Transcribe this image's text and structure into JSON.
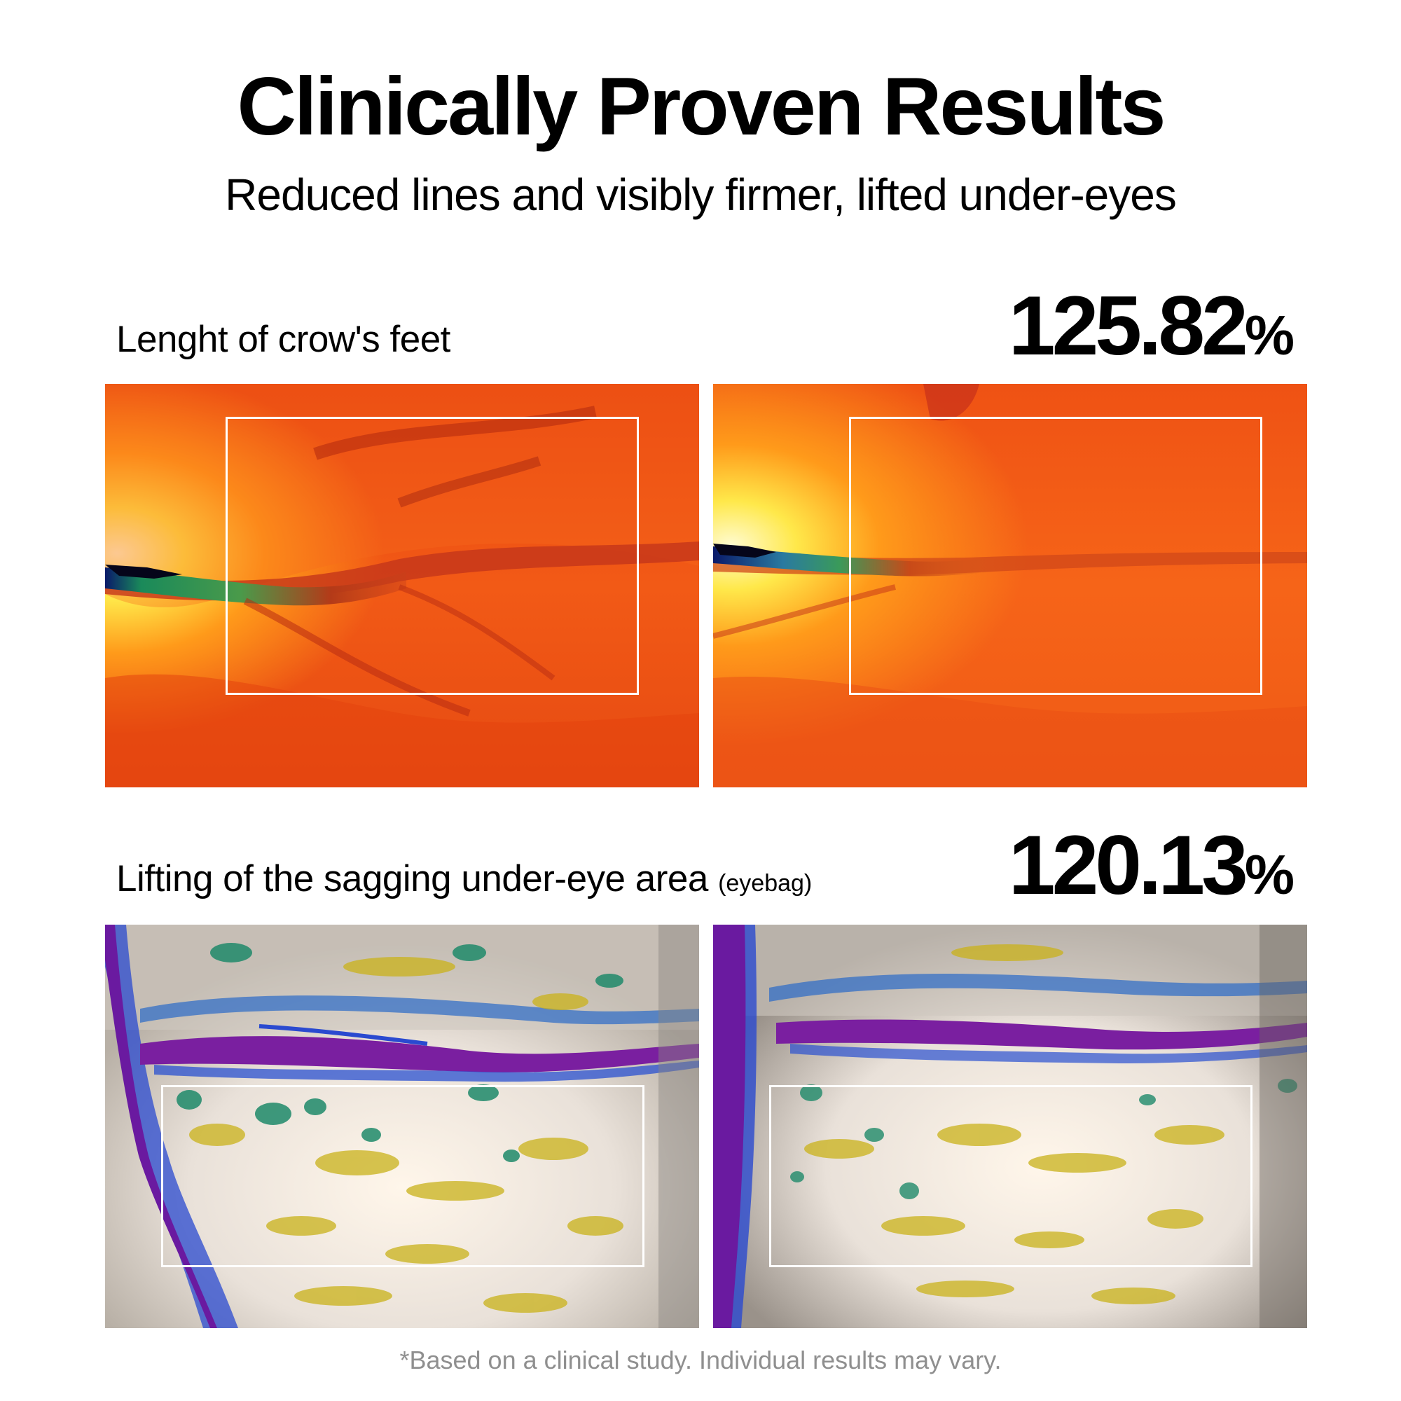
{
  "header": {
    "title": "Clinically Proven Results",
    "subtitle": "Reduced lines and visibly firmer, lifted under-eyes"
  },
  "sections": [
    {
      "label": "Lenght of crow's feet",
      "note": "",
      "stat_value": "125.82",
      "stat_unit": "%",
      "imagery": "heatmap-warm"
    },
    {
      "label": "Lifting of the sagging under-eye area",
      "note": "(eyebag)",
      "stat_value": "120.13",
      "stat_unit": "%",
      "imagery": "topography-map"
    }
  ],
  "footnote": "*Based on a clinical study. Individual results may vary.",
  "colors": {
    "text": "#000000",
    "footnote": "#8f8f8f",
    "roi_border": "#ffffff",
    "heatmap_base": "#ec4a14",
    "heatmap_highlight": "#ffe84a",
    "topo_base": "#e9e1d9",
    "topo_purple": "#7a1fa0",
    "topo_green": "#1f9a6a",
    "topo_yellow": "#c9b21a"
  }
}
